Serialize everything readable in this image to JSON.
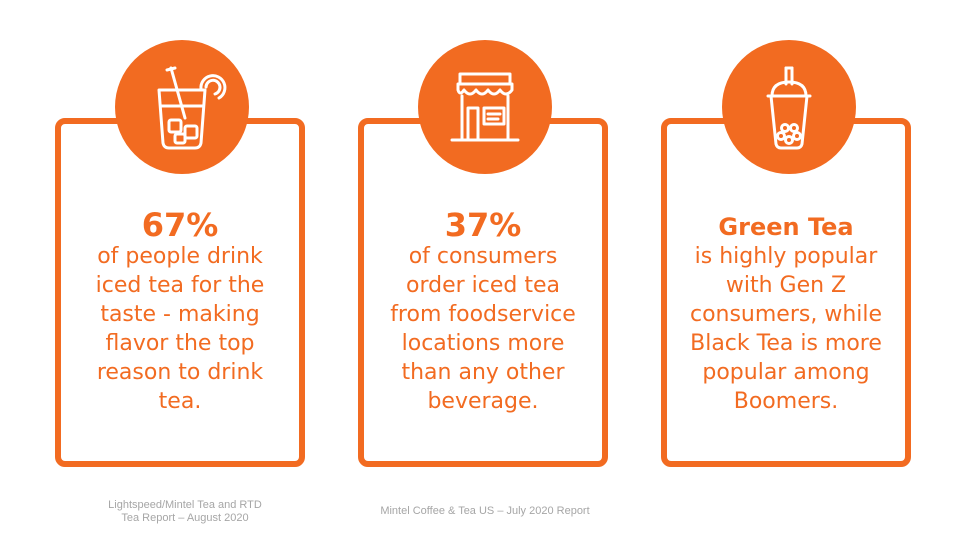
{
  "colors": {
    "accent": "#F26B21",
    "source": "#A6A6A6"
  },
  "cards": [
    {
      "icon": "iced-tea-glass-icon",
      "stat": "67%",
      "lines": [
        "of people drink",
        "iced tea for the",
        "taste - making",
        "flavor the top",
        "reason to drink",
        "tea."
      ]
    },
    {
      "icon": "storefront-icon",
      "stat": "37%",
      "lines": [
        "of consumers",
        "order iced tea",
        "from foodservice",
        "locations more",
        "than any other",
        "beverage."
      ]
    },
    {
      "icon": "bubble-tea-icon",
      "stat": "Green Tea",
      "lines": [
        "is highly popular",
        "with Gen Z",
        "consumers, while",
        "Black Tea is more",
        "popular among",
        "Boomers."
      ]
    }
  ],
  "sources": {
    "left": [
      "Lightspeed/Mintel Tea and RTD",
      "Tea Report – August 2020"
    ],
    "center": "Mintel Coffee & Tea US – July 2020 Report"
  }
}
